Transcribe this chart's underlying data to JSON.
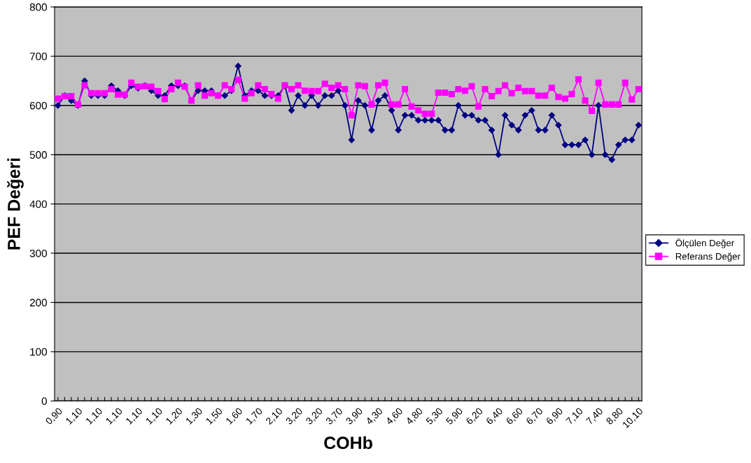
{
  "chart_data": {
    "type": "line",
    "xlabel": "COHb",
    "ylabel": "PEF Değeri",
    "categories": [
      "0,90",
      null,
      null,
      "1,10",
      null,
      null,
      "1,10",
      null,
      null,
      "1,10",
      null,
      null,
      "1,10",
      null,
      null,
      "1,10",
      null,
      null,
      "1,20",
      null,
      null,
      "1,30",
      null,
      null,
      "1,50",
      null,
      null,
      "1,60",
      null,
      null,
      "1,70",
      null,
      null,
      "2,10",
      null,
      null,
      "3,20",
      null,
      null,
      "3,20",
      null,
      null,
      "3,70",
      null,
      null,
      "3,90",
      null,
      null,
      "4,30",
      null,
      null,
      "4,60",
      null,
      null,
      "4,80",
      null,
      null,
      "5,30",
      null,
      null,
      "5,90",
      null,
      null,
      "6,20",
      null,
      null,
      "6,40",
      null,
      null,
      "6,60",
      null,
      null,
      "6,70",
      null,
      null,
      "6,90",
      null,
      null,
      "7,10",
      null,
      null,
      "7,40",
      null,
      null,
      "8,80",
      null,
      null,
      "10,10"
    ],
    "series": [
      {
        "name": "Ölçülen Değer",
        "color": "#000080",
        "marker": "diamond",
        "values": [
          600,
          620,
          610,
          600,
          650,
          620,
          620,
          620,
          640,
          630,
          620,
          640,
          635,
          640,
          630,
          620,
          620,
          640,
          640,
          640,
          610,
          630,
          630,
          630,
          620,
          620,
          630,
          680,
          620,
          630,
          630,
          620,
          620,
          620,
          640,
          590,
          620,
          600,
          620,
          600,
          620,
          620,
          630,
          600,
          530,
          610,
          600,
          550,
          610,
          620,
          590,
          550,
          580,
          580,
          570,
          570,
          570,
          570,
          550,
          550,
          600,
          580,
          580,
          570,
          570,
          550,
          500,
          580,
          560,
          550,
          580,
          590,
          550,
          550,
          580,
          560,
          520,
          520,
          520,
          530,
          500,
          600,
          500,
          490,
          520,
          530,
          530,
          560
        ]
      },
      {
        "name": "Referans Değer",
        "color": "#ff00ff",
        "marker": "square",
        "values": [
          614,
          619,
          619,
          602,
          641,
          625,
          625,
          625,
          633,
          622,
          622,
          646,
          638,
          639,
          638,
          629,
          613,
          633,
          646,
          638,
          610,
          641,
          620,
          625,
          620,
          641,
          633,
          652,
          614,
          625,
          641,
          633,
          623,
          614,
          641,
          633,
          641,
          630,
          629,
          629,
          644,
          636,
          641,
          633,
          580,
          641,
          639,
          602,
          641,
          646,
          602,
          602,
          633,
          598,
          590,
          583,
          583,
          626,
          626,
          623,
          633,
          630,
          639,
          598,
          633,
          619,
          629,
          641,
          625,
          636,
          629,
          629,
          620,
          620,
          636,
          617,
          614,
          623,
          653,
          610,
          589,
          646,
          602,
          602,
          602,
          646,
          612,
          633
        ]
      }
    ],
    "ylim": [
      0,
      800
    ],
    "yticks": [
      0,
      100,
      200,
      300,
      400,
      500,
      600,
      700,
      800
    ],
    "grid": "y",
    "legend": "right",
    "line_style": "solid"
  }
}
